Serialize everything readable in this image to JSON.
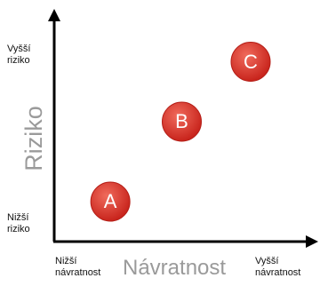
{
  "axes": {
    "y_title": "Riziko",
    "x_title": "Návratnost",
    "y_high_label": [
      "Vyšší",
      "riziko"
    ],
    "y_low_label": [
      "Nižší",
      "riziko"
    ],
    "x_low_label": [
      "Nižší",
      "návratnost"
    ],
    "x_high_label": [
      "Vyšší",
      "návratnost"
    ]
  },
  "bubbles": [
    {
      "label": "A",
      "return_level": 0.22,
      "risk_level": 0.18
    },
    {
      "label": "B",
      "return_level": 0.5,
      "risk_level": 0.54
    },
    {
      "label": "C",
      "return_level": 0.77,
      "risk_level": 0.81
    }
  ],
  "colors": {
    "bubble": "#d42a22",
    "bubble_highlight": "#f06b5c",
    "axis": "#000000",
    "axis_title": "#9a9a9a"
  }
}
